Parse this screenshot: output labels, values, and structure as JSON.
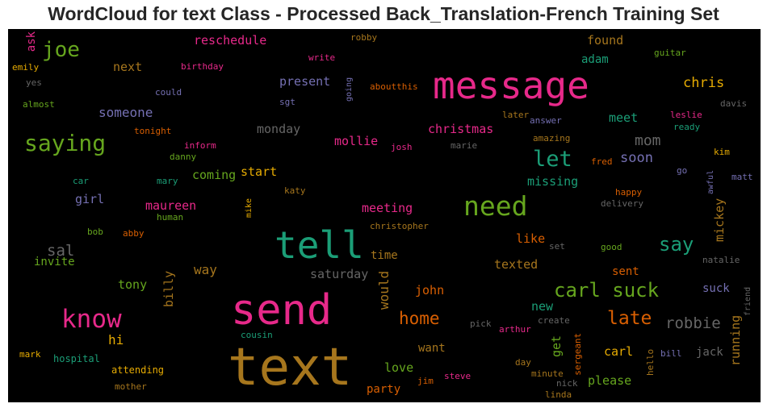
{
  "title": "WordCloud for text Class - Processed Back_Translation-French Training Set",
  "palette": {
    "pink": "#e7298a",
    "teal": "#1b9e77",
    "orange": "#d95f02",
    "purple": "#7570b3",
    "green": "#66a61e",
    "gold": "#e6ab02",
    "brown": "#a6761d",
    "gray": "#666666"
  },
  "words": [
    {
      "text": "text",
      "color": "brown"
    },
    {
      "text": "send",
      "color": "pink"
    },
    {
      "text": "tell",
      "color": "teal"
    },
    {
      "text": "message",
      "color": "pink"
    },
    {
      "text": "need",
      "color": "green"
    },
    {
      "text": "know",
      "color": "pink"
    },
    {
      "text": "saying",
      "color": "green"
    },
    {
      "text": "carl suck",
      "color": "green"
    },
    {
      "text": "say",
      "color": "teal"
    },
    {
      "text": "let",
      "color": "teal"
    },
    {
      "text": "late",
      "color": "orange"
    },
    {
      "text": "joe",
      "color": "green"
    },
    {
      "text": "home",
      "color": "orange"
    },
    {
      "text": "robbie",
      "color": "gray"
    },
    {
      "text": "chris",
      "color": "gold"
    },
    {
      "text": "sal",
      "color": "gray"
    },
    {
      "text": "mom",
      "color": "gray"
    },
    {
      "text": "soon",
      "color": "purple"
    },
    {
      "text": "reschedule",
      "color": "pink"
    },
    {
      "text": "someone",
      "color": "purple"
    },
    {
      "text": "present",
      "color": "purple"
    },
    {
      "text": "monday",
      "color": "gray"
    },
    {
      "text": "christmas",
      "color": "pink"
    },
    {
      "text": "mollie",
      "color": "pink"
    },
    {
      "text": "meet",
      "color": "teal"
    },
    {
      "text": "found",
      "color": "brown"
    },
    {
      "text": "adam",
      "color": "teal"
    },
    {
      "text": "next",
      "color": "brown"
    },
    {
      "text": "ask",
      "color": "pink"
    },
    {
      "text": "start",
      "color": "gold"
    },
    {
      "text": "coming",
      "color": "green"
    },
    {
      "text": "missing",
      "color": "teal"
    },
    {
      "text": "maureen",
      "color": "pink"
    },
    {
      "text": "meeting",
      "color": "pink"
    },
    {
      "text": "girl",
      "color": "purple"
    },
    {
      "text": "invite",
      "color": "green"
    },
    {
      "text": "way",
      "color": "brown"
    },
    {
      "text": "saturday",
      "color": "gray"
    },
    {
      "text": "time",
      "color": "brown"
    },
    {
      "text": "texted",
      "color": "brown"
    },
    {
      "text": "like",
      "color": "orange"
    },
    {
      "text": "sent",
      "color": "orange"
    },
    {
      "text": "tony",
      "color": "green"
    },
    {
      "text": "billy",
      "color": "brown"
    },
    {
      "text": "would",
      "color": "brown"
    },
    {
      "text": "john",
      "color": "orange"
    },
    {
      "text": "new",
      "color": "teal"
    },
    {
      "text": "suck",
      "color": "purple"
    },
    {
      "text": "mickey",
      "color": "brown"
    },
    {
      "text": "running",
      "color": "brown"
    },
    {
      "text": "hi",
      "color": "gold"
    },
    {
      "text": "get",
      "color": "green"
    },
    {
      "text": "want",
      "color": "brown"
    },
    {
      "text": "carl",
      "color": "gold"
    },
    {
      "text": "jack",
      "color": "gray"
    },
    {
      "text": "love",
      "color": "green"
    },
    {
      "text": "please",
      "color": "green"
    },
    {
      "text": "party",
      "color": "orange"
    },
    {
      "text": "attending",
      "color": "gold"
    },
    {
      "text": "hospital",
      "color": "teal"
    },
    {
      "text": "mark",
      "color": "gold"
    },
    {
      "text": "mother",
      "color": "brown"
    },
    {
      "text": "cousin",
      "color": "teal"
    },
    {
      "text": "jim",
      "color": "orange"
    },
    {
      "text": "steve",
      "color": "pink"
    },
    {
      "text": "linda",
      "color": "brown"
    },
    {
      "text": "nick",
      "color": "gray"
    },
    {
      "text": "minute",
      "color": "brown"
    },
    {
      "text": "day",
      "color": "brown"
    },
    {
      "text": "arthur",
      "color": "pink"
    },
    {
      "text": "create",
      "color": "gray"
    },
    {
      "text": "pick",
      "color": "gray"
    },
    {
      "text": "sergeant",
      "color": "orange"
    },
    {
      "text": "hello",
      "color": "brown"
    },
    {
      "text": "bill",
      "color": "purple"
    },
    {
      "text": "friend",
      "color": "gray"
    },
    {
      "text": "natalie",
      "color": "gray"
    },
    {
      "text": "good",
      "color": "green"
    },
    {
      "text": "set",
      "color": "gray"
    },
    {
      "text": "delivery",
      "color": "gray"
    },
    {
      "text": "happy",
      "color": "orange"
    },
    {
      "text": "awful",
      "color": "purple"
    },
    {
      "text": "matt",
      "color": "purple"
    },
    {
      "text": "go",
      "color": "purple"
    },
    {
      "text": "kim",
      "color": "gold"
    },
    {
      "text": "fred",
      "color": "orange"
    },
    {
      "text": "ready",
      "color": "teal"
    },
    {
      "text": "leslie",
      "color": "pink"
    },
    {
      "text": "davis",
      "color": "gray"
    },
    {
      "text": "amazing",
      "color": "brown"
    },
    {
      "text": "answer",
      "color": "purple"
    },
    {
      "text": "later",
      "color": "brown"
    },
    {
      "text": "marie",
      "color": "gray"
    },
    {
      "text": "josh",
      "color": "pink"
    },
    {
      "text": "christopher",
      "color": "brown"
    },
    {
      "text": "katy",
      "color": "brown"
    },
    {
      "text": "mike",
      "color": "gold"
    },
    {
      "text": "human",
      "color": "green"
    },
    {
      "text": "abby",
      "color": "orange"
    },
    {
      "text": "bob",
      "color": "green"
    },
    {
      "text": "mary",
      "color": "teal"
    },
    {
      "text": "car",
      "color": "teal"
    },
    {
      "text": "danny",
      "color": "green"
    },
    {
      "text": "inform",
      "color": "pink"
    },
    {
      "text": "tonight",
      "color": "orange"
    },
    {
      "text": "sgt",
      "color": "purple"
    },
    {
      "text": "could",
      "color": "purple"
    },
    {
      "text": "going",
      "color": "purple"
    },
    {
      "text": "aboutthis",
      "color": "orange"
    },
    {
      "text": "birthday",
      "color": "pink"
    },
    {
      "text": "write",
      "color": "pink"
    },
    {
      "text": "robby",
      "color": "brown"
    },
    {
      "text": "guitar",
      "color": "green"
    },
    {
      "text": "emily",
      "color": "gold"
    },
    {
      "text": "yes",
      "color": "gray"
    },
    {
      "text": "almost",
      "color": "green"
    }
  ]
}
